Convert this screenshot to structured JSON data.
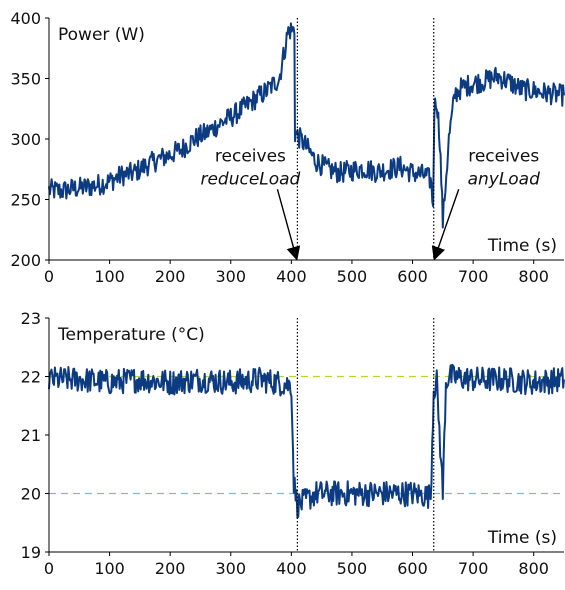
{
  "chart_data": [
    {
      "type": "line",
      "ylabel": "Power (W)",
      "xlabel": "Time (s)",
      "xlim": [
        0,
        850
      ],
      "ylim": [
        200,
        400
      ],
      "xticks": [
        0,
        100,
        200,
        300,
        400,
        500,
        600,
        700,
        800
      ],
      "yticks": [
        200,
        250,
        300,
        350,
        400
      ],
      "grid": false,
      "color": "#0d3b82",
      "series": [
        {
          "x": [
            0,
            20,
            40,
            60,
            80,
            100,
            120,
            140,
            160,
            180,
            200,
            220,
            240,
            260,
            280,
            300,
            320,
            340,
            360,
            380,
            395,
            405,
            406,
            420,
            440,
            460,
            480,
            500,
            520,
            540,
            560,
            580,
            600,
            620,
            630,
            634,
            636,
            640,
            645,
            650,
            660,
            670,
            680,
            700,
            720,
            740,
            760,
            780,
            800,
            820,
            850
          ],
          "y": [
            258,
            257,
            259,
            260,
            262,
            265,
            270,
            272,
            278,
            283,
            287,
            292,
            300,
            305,
            312,
            318,
            325,
            333,
            340,
            350,
            390,
            390,
            305,
            297,
            282,
            275,
            272,
            274,
            276,
            273,
            275,
            277,
            272,
            270,
            266,
            245,
            325,
            332,
            300,
            232,
            300,
            337,
            342,
            346,
            348,
            352,
            347,
            341,
            340,
            338,
            336
          ]
        }
      ],
      "annotations": [
        {
          "text_lines": [
            "receives",
            "reduceLoad"
          ],
          "x": 410,
          "y_text": 275,
          "arrow_to": [
            410,
            200
          ]
        },
        {
          "text_lines": [
            "receives",
            "anyLoad"
          ],
          "x": 635,
          "y_text": 275,
          "arrow_to": [
            635,
            200
          ]
        }
      ]
    },
    {
      "type": "line",
      "ylabel": "Temperature (°C)",
      "xlabel": "Time (s)",
      "xlim": [
        0,
        850
      ],
      "ylim": [
        19,
        23
      ],
      "xticks": [
        0,
        100,
        200,
        300,
        400,
        500,
        600,
        700,
        800
      ],
      "yticks": [
        19,
        20,
        21,
        22,
        23
      ],
      "grid": false,
      "color": "#0d3b82",
      "series": [
        {
          "x": [
            0,
            50,
            100,
            150,
            200,
            250,
            300,
            350,
            400,
            404,
            410,
            420,
            440,
            500,
            550,
            600,
            630,
            635,
            640,
            650,
            655,
            660,
            700,
            750,
            800,
            850
          ],
          "y": [
            21.95,
            21.95,
            21.9,
            21.95,
            21.9,
            21.95,
            21.9,
            21.95,
            21.85,
            20.2,
            19.8,
            19.85,
            20.0,
            20.0,
            20.0,
            20.0,
            19.95,
            21.8,
            21.9,
            20.0,
            21.9,
            22.0,
            21.95,
            21.95,
            21.9,
            21.95
          ]
        }
      ],
      "reference_lines": [
        {
          "y": 22,
          "color": "#b5d334",
          "style": "dashed"
        },
        {
          "y": 20,
          "color": "#7ab8e6",
          "style": "dashed"
        }
      ]
    }
  ],
  "event_lines_x": [
    410,
    635
  ]
}
